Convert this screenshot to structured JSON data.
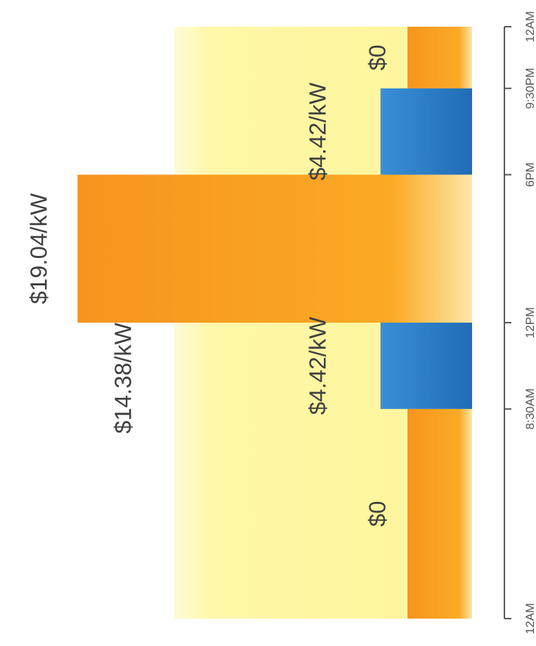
{
  "chart_data": {
    "type": "bar",
    "orientation": "rotated-90",
    "x_ticks": [
      "12AM",
      "8:30AM",
      "12PM",
      "6PM",
      "9:30PM",
      "12AM"
    ],
    "x_tick_hours": [
      0,
      8.5,
      12,
      18,
      21.5,
      24
    ],
    "series": [
      {
        "segments": [
          {
            "start": 0,
            "end": 8.5,
            "value": 0,
            "color": "#f7941d"
          },
          {
            "start": 21.5,
            "end": 24,
            "value": 0,
            "color": "#f7941d"
          },
          {
            "start": 12,
            "end": 18,
            "value": 19.04,
            "color": "#f7941d"
          }
        ]
      },
      {
        "segments": [
          {
            "start": 8.5,
            "end": 12,
            "value": 4.42,
            "color": "#2a7ac4"
          },
          {
            "start": 18,
            "end": 21.5,
            "value": 4.42,
            "color": "#2a7ac4"
          }
        ]
      },
      {
        "segments": [
          {
            "start": 0,
            "end": 24,
            "value": 14.38,
            "color": "#fff59a"
          }
        ]
      }
    ],
    "data_labels": {
      "offpeak_left": "$0",
      "offpeak_right": "$0",
      "mid_morning": "$4.42/kW",
      "mid_evening": "$4.42/kW",
      "peak": "$19.04/kW",
      "all_day": "$14.38/kW"
    },
    "ylim": [
      0,
      20
    ],
    "grid": false,
    "legend": "none"
  }
}
